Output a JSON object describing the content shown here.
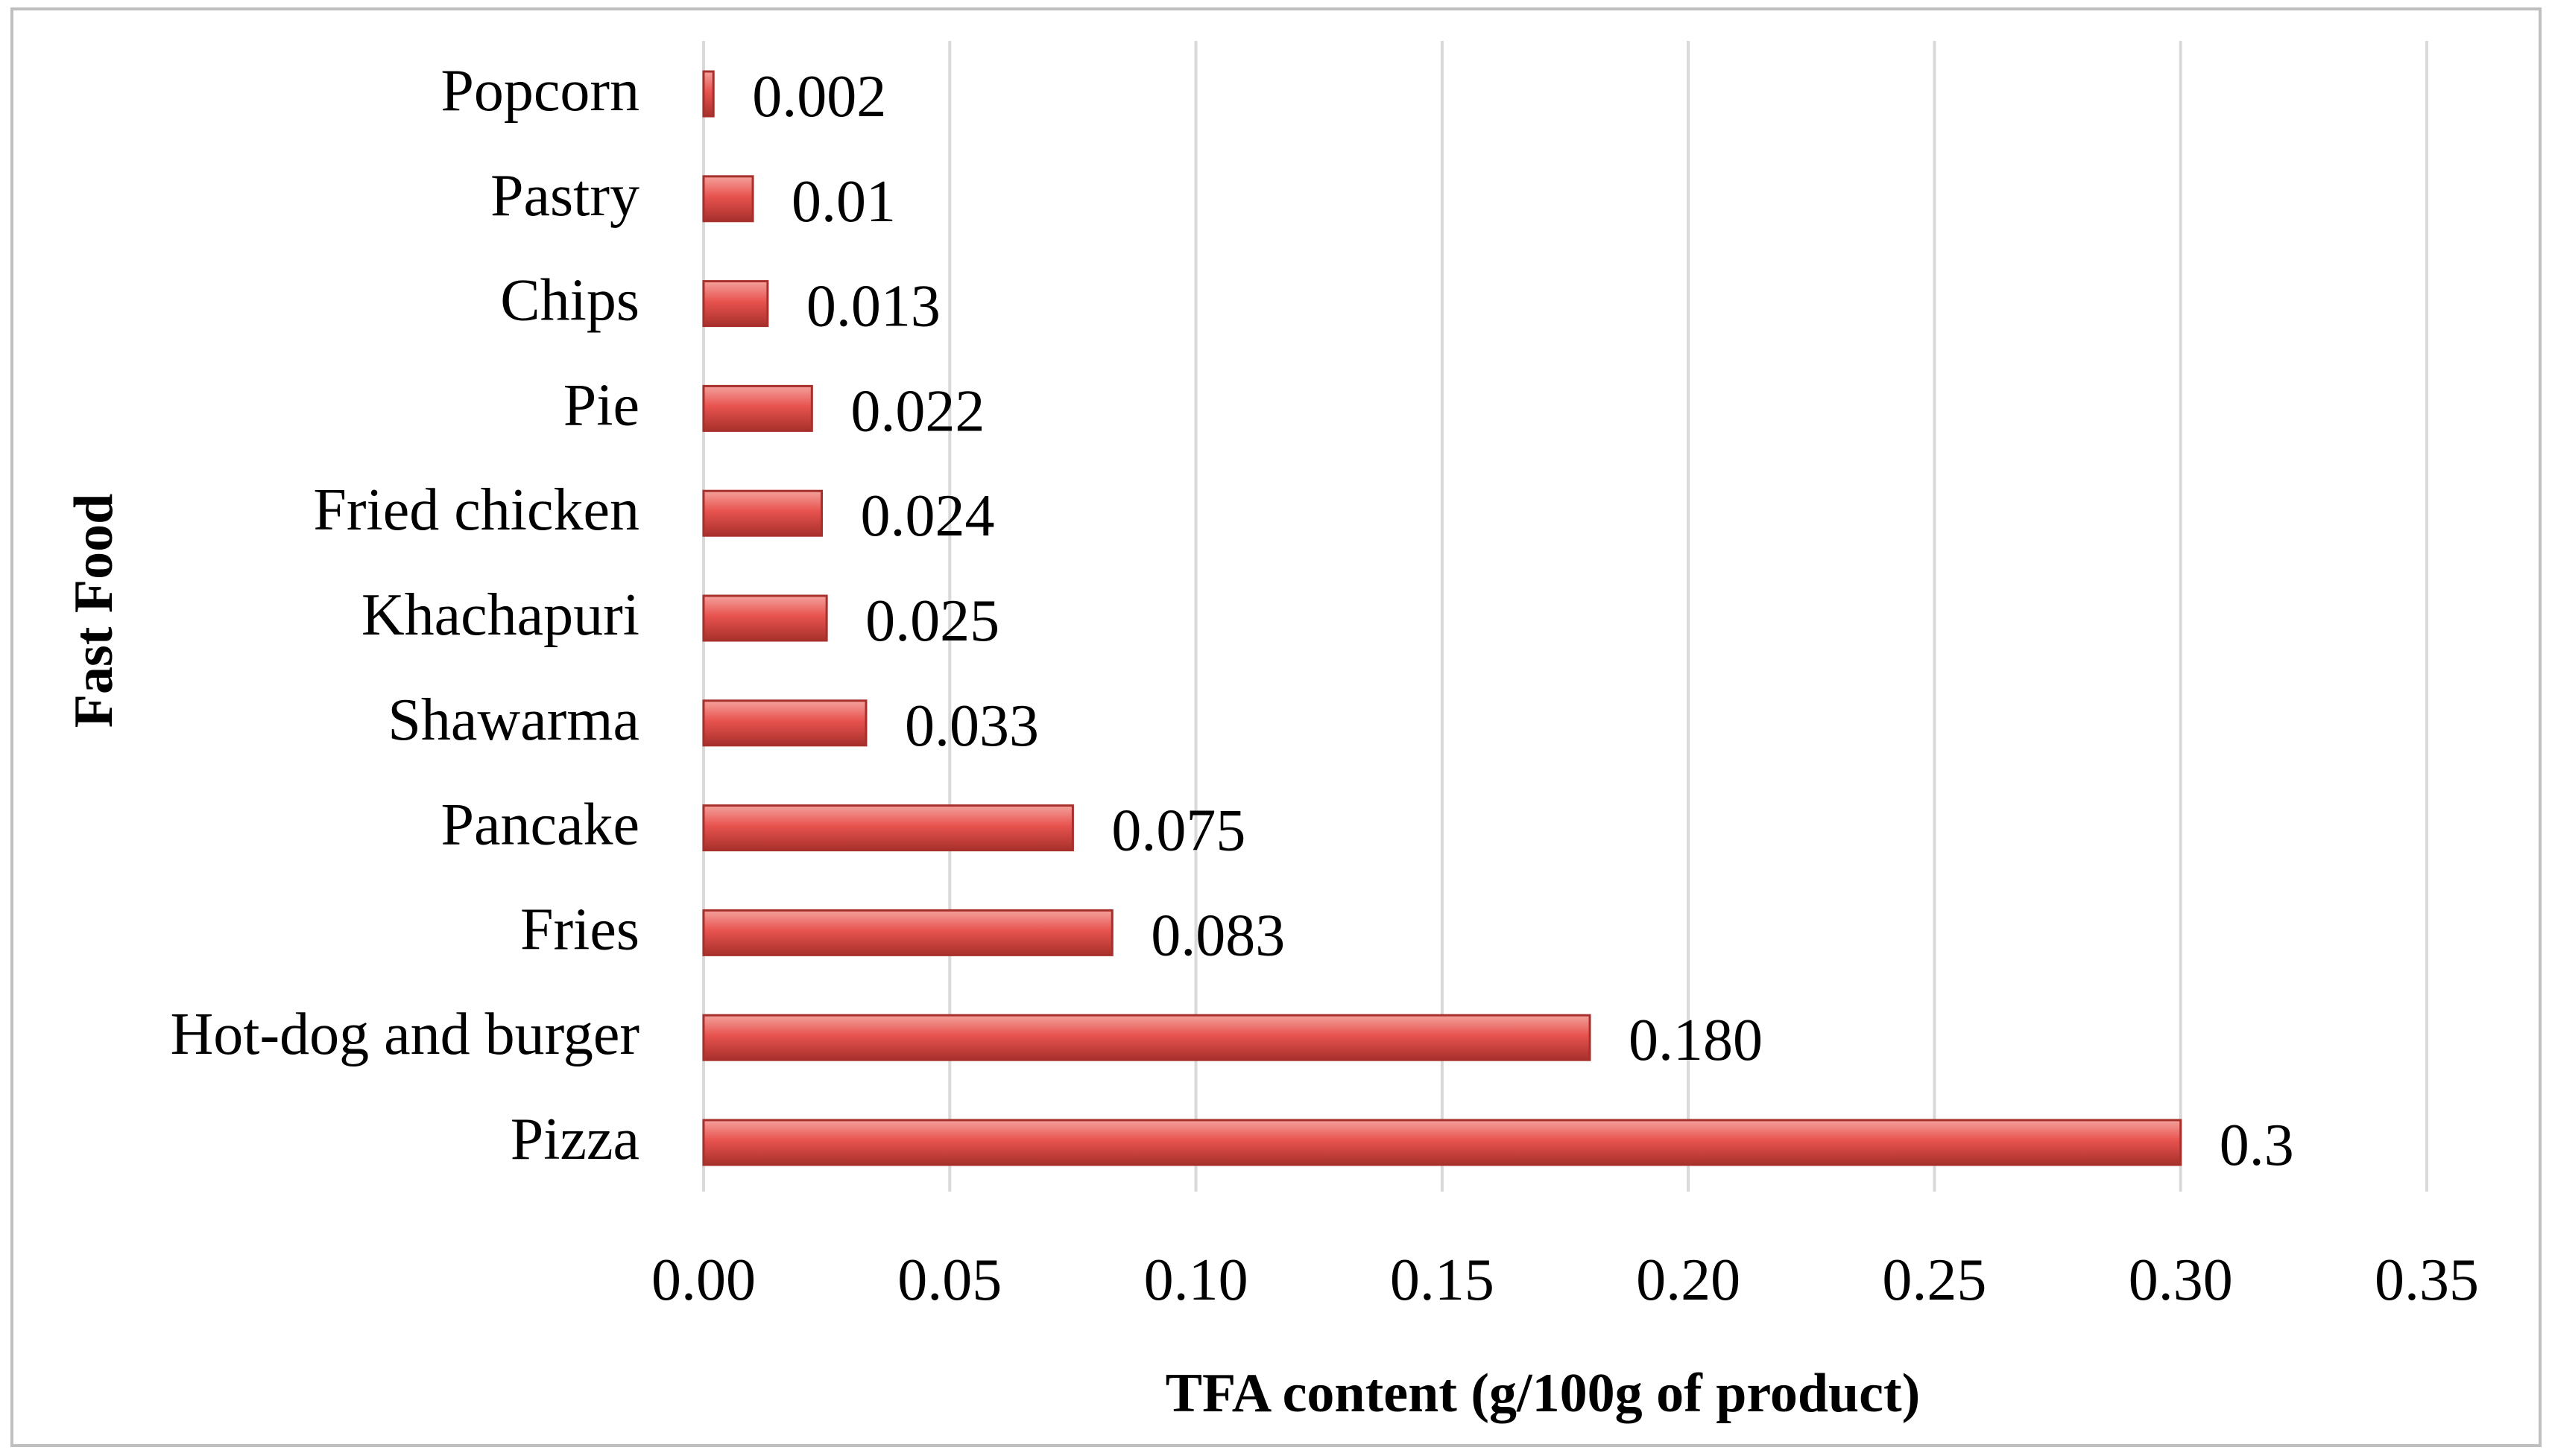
{
  "chart_data": {
    "type": "bar",
    "orientation": "horizontal",
    "title": "",
    "xlabel": "TFA content (g/100g of product)",
    "ylabel": "Fast Food",
    "xlim": [
      0,
      0.35
    ],
    "grid": true,
    "categories": [
      "Popcorn",
      "Pastry",
      "Chips",
      "Pie",
      "Fried chicken",
      "Khachapuri",
      "Shawarma",
      "Pancake",
      "Fries",
      "Hot-dog and burger",
      "Pizza"
    ],
    "values": [
      0.002,
      0.01,
      0.013,
      0.022,
      0.024,
      0.025,
      0.033,
      0.075,
      0.083,
      0.18,
      0.3
    ],
    "value_labels": [
      "0.002",
      "0.01",
      "0.013",
      "0.022",
      "0.024",
      "0.025",
      "0.033",
      "0.075",
      "0.083",
      "0.180",
      "0.3"
    ],
    "ticks": [
      "0.00",
      "0.05",
      "0.10",
      "0.15",
      "0.20",
      "0.25",
      "0.30",
      "0.35"
    ],
    "colors": {
      "bar": "#e8534f",
      "bar_light": "#f4a19c",
      "bar_dark": "#a8302c",
      "grid": "#d9d9d9",
      "frame": "#bfbfbf"
    }
  }
}
